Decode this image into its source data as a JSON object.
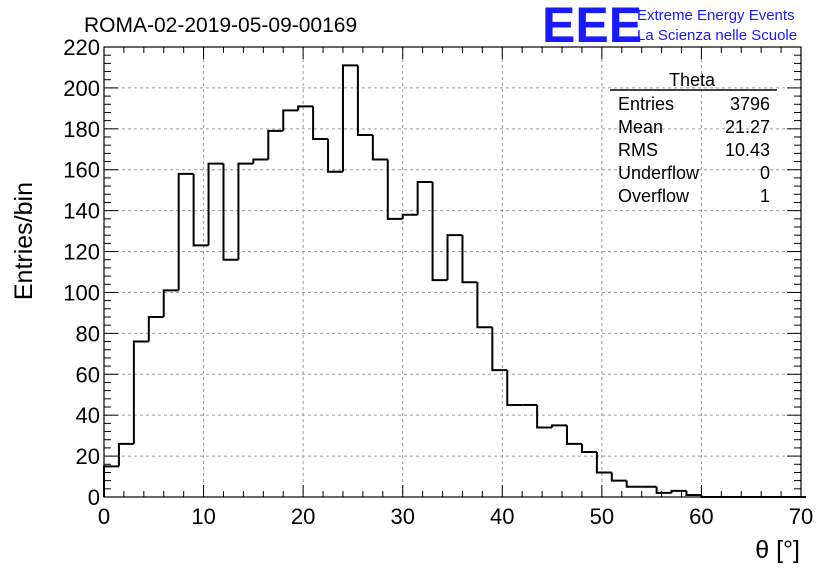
{
  "header": {
    "run_title": "ROMA-02-2019-05-09-00169",
    "logo_text": "EEE",
    "logo_line1": "Extreme Energy Events",
    "logo_line2": "La Scienza nelle Scuole",
    "logo_color": "#1a1aff"
  },
  "stats_box": {
    "name": "Theta",
    "rows": [
      {
        "label": "Entries",
        "value": "3796"
      },
      {
        "label": "Mean",
        "value": "21.27"
      },
      {
        "label": "RMS",
        "value": "10.43"
      },
      {
        "label": "Underflow",
        "value": "0"
      },
      {
        "label": "Overflow",
        "value": "1"
      }
    ]
  },
  "chart_data": {
    "type": "histogram",
    "title": "ROMA-02-2019-05-09-00169",
    "xlabel": "θ [°]",
    "ylabel": "Entries/bin",
    "xlim": [
      0,
      70
    ],
    "ylim": [
      0,
      220
    ],
    "x_ticks": [
      0,
      10,
      20,
      30,
      40,
      50,
      60,
      70
    ],
    "y_ticks": [
      0,
      20,
      40,
      60,
      80,
      100,
      120,
      140,
      160,
      180,
      200,
      220
    ],
    "grid": true,
    "bin_width": 1.5,
    "bin_edges_start": 0,
    "values": [
      15,
      26,
      76,
      88,
      101,
      158,
      123,
      163,
      116,
      163,
      165,
      179,
      189,
      191,
      175,
      159,
      211,
      177,
      165,
      136,
      138,
      154,
      106,
      128,
      105,
      83,
      62,
      45,
      45,
      34,
      35,
      26,
      22,
      12,
      8,
      5,
      5,
      2,
      3,
      1,
      0,
      0,
      0,
      0,
      0,
      0,
      0
    ],
    "line_color": "#000000"
  }
}
